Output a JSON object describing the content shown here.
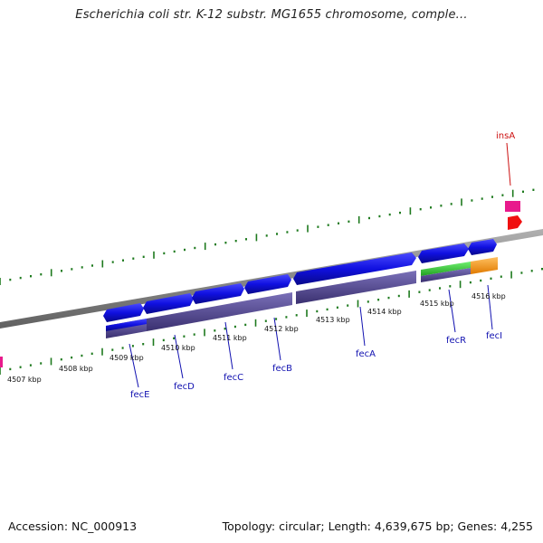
{
  "title": "Escherichia coli str. K-12 substr. MG1655 chromosome, comple...",
  "footer": {
    "accession": "Accession: NC_000913",
    "topology": "Topology: circular; Length: 4,639,675 bp; Genes: 4,255"
  },
  "map": {
    "colors": {
      "backbone": "#888888",
      "tick": "#1e7a1e",
      "gene_forward": "#1010e0",
      "gene_cds": "#4a4090",
      "fecR_cds": "#30c030",
      "fecI_cds": "#f39a1b",
      "insA": "#e81a8c",
      "insA_cds": "#f01010",
      "label_gene": "#1010b0",
      "label_insertion": "#cc1010"
    },
    "kbp_labels": [
      "4507 kbp",
      "4508 kbp",
      "4509 kbp",
      "4510 kbp",
      "4511 kbp",
      "4512 kbp",
      "4513 kbp",
      "4514 kbp",
      "4515 kbp",
      "4516 kbp"
    ],
    "gene_labels": [
      "fecE",
      "fecD",
      "fecC",
      "fecB",
      "fecA",
      "fecR",
      "fecI",
      "insA"
    ]
  }
}
